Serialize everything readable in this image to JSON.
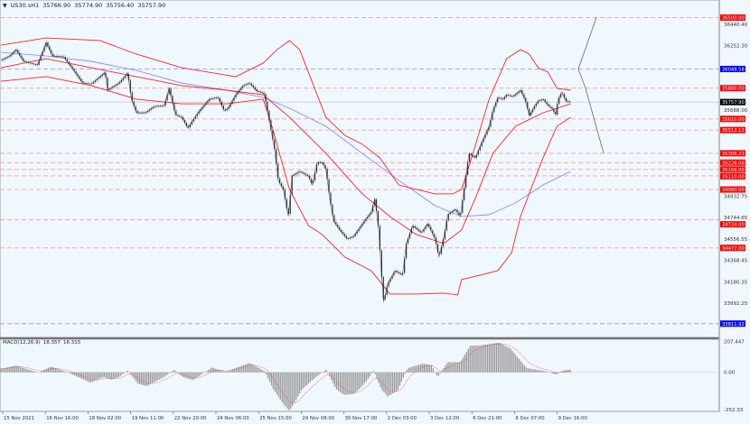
{
  "header": {
    "symbol": "US30.sH1",
    "open": "35766.90",
    "high": "35774.90",
    "low": "35756.40",
    "close": "35757.90"
  },
  "colors": {
    "background": "#f0f8ff",
    "bands": "#ff2020",
    "ma": "#8080ff",
    "level_red": "#ff0000",
    "level_blue": "#0000ff",
    "candle": "#333333",
    "histogram": "#999999",
    "signal": "#ff3030"
  },
  "chart_data": [
    {
      "type": "line",
      "title": "US30.sH1",
      "x_unit": "hourly bar index",
      "ylim": [
        33770,
        36560
      ],
      "grid": false,
      "y_ticks": [
        36440.4,
        36252.3,
        35688.0,
        34932.75,
        34744.65,
        34556.55,
        34368.45,
        34180.35,
        33992.25
      ],
      "y_tick_labels": [
        "36440.40",
        "36252.30",
        "35688.00",
        "34932.75",
        "34744.65",
        "34556.55",
        "34368.45",
        "34180.35",
        "33992.25"
      ],
      "x_tick_labels": [
        "15 Nov 2021",
        "16 Nov 16:00",
        "18 Nov 02:00",
        "19 Nov 11:00",
        "22 Nov 20:00",
        "24 Nov 06:00",
        "25 Nov 15:00",
        "29 Nov 08:00",
        "30 Nov 17:00",
        "2 Dec 03:00",
        "3 Dec 12:00",
        "6 Dec 21:00",
        "8 Dec 07:00",
        "9 Dec 16:00"
      ],
      "price": [
        [
          0,
          36124
        ],
        [
          7,
          36163
        ],
        [
          12,
          36219
        ],
        [
          18,
          36116
        ],
        [
          29,
          36084
        ],
        [
          36,
          36282
        ],
        [
          41,
          36163
        ],
        [
          50,
          36155
        ],
        [
          58,
          36036
        ],
        [
          65,
          35925
        ],
        [
          72,
          35917
        ],
        [
          79,
          35981
        ],
        [
          83,
          36020
        ],
        [
          85,
          35862
        ],
        [
          94,
          35925
        ],
        [
          101,
          36013
        ],
        [
          104,
          35783
        ],
        [
          108,
          35664
        ],
        [
          115,
          35664
        ],
        [
          122,
          35719
        ],
        [
          130,
          35727
        ],
        [
          134,
          35878
        ],
        [
          139,
          35648
        ],
        [
          144,
          35624
        ],
        [
          149,
          35529
        ],
        [
          153,
          35601
        ],
        [
          158,
          35680
        ],
        [
          166,
          35783
        ],
        [
          173,
          35799
        ],
        [
          178,
          35680
        ],
        [
          181,
          35704
        ],
        [
          187,
          35822
        ],
        [
          193,
          35902
        ],
        [
          198,
          35925
        ],
        [
          204,
          35854
        ],
        [
          209,
          35838
        ],
        [
          210,
          35822
        ],
        [
          214,
          35585
        ],
        [
          218,
          35347
        ],
        [
          221,
          35070
        ],
        [
          225,
          34990
        ],
        [
          229,
          34753
        ],
        [
          232,
          35109
        ],
        [
          238,
          35149
        ],
        [
          245,
          35109
        ],
        [
          248,
          35030
        ],
        [
          252,
          35228
        ],
        [
          256,
          35228
        ],
        [
          259,
          35165
        ],
        [
          262,
          34911
        ],
        [
          265,
          34713
        ],
        [
          270,
          34634
        ],
        [
          276,
          34555
        ],
        [
          281,
          34579
        ],
        [
          288,
          34690
        ],
        [
          295,
          34792
        ],
        [
          298,
          34911
        ],
        [
          301,
          34634
        ],
        [
          303,
          34277
        ],
        [
          305,
          34000
        ],
        [
          308,
          34159
        ],
        [
          314,
          34277
        ],
        [
          320,
          34238
        ],
        [
          323,
          34515
        ],
        [
          328,
          34674
        ],
        [
          335,
          34610
        ],
        [
          340,
          34690
        ],
        [
          346,
          34555
        ],
        [
          349,
          34396
        ],
        [
          353,
          34579
        ],
        [
          356,
          34769
        ],
        [
          362,
          34816
        ],
        [
          366,
          34753
        ],
        [
          369,
          34990
        ],
        [
          373,
          35307
        ],
        [
          378,
          35268
        ],
        [
          383,
          35402
        ],
        [
          389,
          35545
        ],
        [
          392,
          35688
        ],
        [
          396,
          35799
        ],
        [
          400,
          35783
        ],
        [
          403,
          35822
        ],
        [
          408,
          35807
        ],
        [
          414,
          35862
        ],
        [
          418,
          35767
        ],
        [
          421,
          35640
        ],
        [
          425,
          35719
        ],
        [
          428,
          35767
        ],
        [
          432,
          35783
        ],
        [
          436,
          35727
        ],
        [
          439,
          35704
        ],
        [
          442,
          35648
        ],
        [
          444,
          35783
        ],
        [
          447,
          35846
        ],
        [
          450,
          35767
        ],
        [
          454,
          35757.9
        ]
      ],
      "bb_upper": [
        [
          0,
          36258
        ],
        [
          36,
          36321
        ],
        [
          79,
          36298
        ],
        [
          108,
          36179
        ],
        [
          144,
          36060
        ],
        [
          187,
          35981
        ],
        [
          209,
          36100
        ],
        [
          220,
          36218
        ],
        [
          230,
          36298
        ],
        [
          238,
          36218
        ],
        [
          245,
          36020
        ],
        [
          259,
          35624
        ],
        [
          274,
          35466
        ],
        [
          288,
          35387
        ],
        [
          302,
          35268
        ],
        [
          317,
          35030
        ],
        [
          331,
          34991
        ],
        [
          346,
          34951
        ],
        [
          360,
          34951
        ],
        [
          367,
          34991
        ],
        [
          374,
          35228
        ],
        [
          389,
          35783
        ],
        [
          403,
          36139
        ],
        [
          414,
          36218
        ],
        [
          421,
          36179
        ],
        [
          428,
          36060
        ],
        [
          436,
          36020
        ],
        [
          443,
          35878
        ],
        [
          454,
          35862
        ]
      ],
      "bb_middle": [
        [
          0,
          36060
        ],
        [
          36,
          36139
        ],
        [
          72,
          36060
        ],
        [
          108,
          35981
        ],
        [
          144,
          35902
        ],
        [
          180,
          35862
        ],
        [
          209,
          35822
        ],
        [
          230,
          35624
        ],
        [
          259,
          35307
        ],
        [
          288,
          34951
        ],
        [
          310,
          34753
        ],
        [
          331,
          34595
        ],
        [
          353,
          34516
        ],
        [
          367,
          34634
        ],
        [
          378,
          34912
        ],
        [
          392,
          35307
        ],
        [
          410,
          35545
        ],
        [
          432,
          35664
        ],
        [
          454,
          35743
        ]
      ],
      "bb_lower": [
        [
          0,
          35941
        ],
        [
          36,
          35981
        ],
        [
          72,
          35902
        ],
        [
          108,
          35783
        ],
        [
          144,
          35743
        ],
        [
          180,
          35743
        ],
        [
          209,
          35783
        ],
        [
          216,
          35545
        ],
        [
          230,
          34990
        ],
        [
          245,
          34674
        ],
        [
          256,
          34595
        ],
        [
          274,
          34397
        ],
        [
          295,
          34278
        ],
        [
          310,
          34072
        ],
        [
          331,
          34072
        ],
        [
          353,
          34080
        ],
        [
          364,
          34064
        ],
        [
          367,
          34199
        ],
        [
          382,
          34238
        ],
        [
          396,
          34278
        ],
        [
          407,
          34436
        ],
        [
          414,
          34753
        ],
        [
          425,
          35070
        ],
        [
          432,
          35268
        ],
        [
          443,
          35545
        ],
        [
          454,
          35624
        ]
      ],
      "ma": [
        [
          0,
          36195
        ],
        [
          36,
          36163
        ],
        [
          72,
          36115
        ],
        [
          108,
          36036
        ],
        [
          144,
          35925
        ],
        [
          180,
          35862
        ],
        [
          209,
          35799
        ],
        [
          230,
          35704
        ],
        [
          259,
          35545
        ],
        [
          288,
          35307
        ],
        [
          317,
          35070
        ],
        [
          346,
          34848
        ],
        [
          367,
          34753
        ],
        [
          389,
          34769
        ],
        [
          410,
          34872
        ],
        [
          432,
          35030
        ],
        [
          454,
          35149
        ]
      ],
      "levels": [
        {
          "price": 36500.0,
          "label": "36500.00",
          "kind": "red"
        },
        {
          "price": 36048.58,
          "label": "36048.58",
          "kind": "blue"
        },
        {
          "price": 35880.0,
          "label": "35880.00",
          "kind": "red"
        },
        {
          "price": 35757.9,
          "label": "35757.90",
          "kind": "current"
        },
        {
          "price": 35610.0,
          "label": "35610.00",
          "kind": "red"
        },
        {
          "price": 35512.12,
          "label": "35512.12",
          "kind": "red"
        },
        {
          "price": 35308.23,
          "label": "35308.23",
          "kind": "red"
        },
        {
          "price": 35226.0,
          "label": "35226.00",
          "kind": "red"
        },
        {
          "price": 35166.0,
          "label": "35166.00",
          "kind": "red"
        },
        {
          "price": 35110.0,
          "label": "35110.00",
          "kind": "red"
        },
        {
          "price": 34990.0,
          "label": "34990.00",
          "kind": "red"
        },
        {
          "price": 34724.0,
          "label": "34724.00",
          "kind": "red"
        },
        {
          "price": 34477.0,
          "label": "34477.00",
          "kind": "red"
        },
        {
          "price": 33811.92,
          "label": "33811.92",
          "kind": "blue"
        }
      ]
    },
    {
      "type": "bar",
      "title": "MACD(12,26,9)",
      "macd_value": "18.357",
      "signal_value": "16.315",
      "ylim": [
        -252.33,
        207.447
      ],
      "y_tick_labels": [
        "207.447",
        "0.00",
        "-252.33"
      ],
      "histogram": [
        [
          0,
          24
        ],
        [
          12,
          45
        ],
        [
          30,
          -2
        ],
        [
          40,
          39
        ],
        [
          53,
          0
        ],
        [
          71,
          -69
        ],
        [
          82,
          -32
        ],
        [
          88,
          -49
        ],
        [
          94,
          -32
        ],
        [
          101,
          12
        ],
        [
          109,
          -77
        ],
        [
          116,
          -93
        ],
        [
          130,
          -32
        ],
        [
          138,
          18
        ],
        [
          145,
          -32
        ],
        [
          153,
          -53
        ],
        [
          168,
          32
        ],
        [
          179,
          4
        ],
        [
          198,
          63
        ],
        [
          210,
          8
        ],
        [
          217,
          -114
        ],
        [
          225,
          -215
        ],
        [
          230,
          -260
        ],
        [
          240,
          -114
        ],
        [
          251,
          -32
        ],
        [
          259,
          18
        ],
        [
          267,
          -114
        ],
        [
          274,
          -154
        ],
        [
          282,
          -144
        ],
        [
          292,
          -53
        ],
        [
          297,
          12
        ],
        [
          303,
          -114
        ],
        [
          308,
          -164
        ],
        [
          316,
          -124
        ],
        [
          324,
          28
        ],
        [
          336,
          59
        ],
        [
          343,
          49
        ],
        [
          348,
          -32
        ],
        [
          356,
          69
        ],
        [
          366,
          69
        ],
        [
          374,
          181
        ],
        [
          381,
          181
        ],
        [
          397,
          201
        ],
        [
          406,
          160
        ],
        [
          419,
          28
        ],
        [
          434,
          8
        ],
        [
          442,
          -16
        ],
        [
          448,
          12
        ],
        [
          454,
          18.357
        ]
      ]
    }
  ]
}
